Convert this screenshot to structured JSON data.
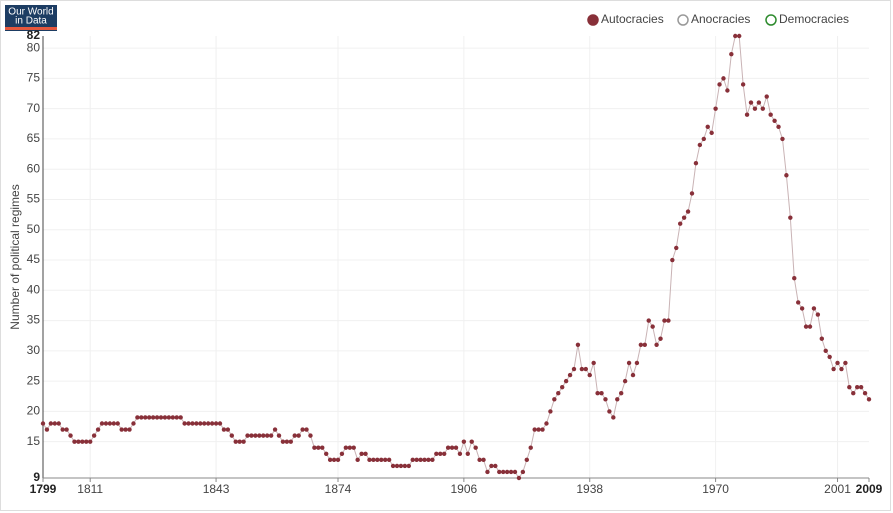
{
  "logo": {
    "line1": "Our World",
    "line2": "in Data"
  },
  "chart_data": {
    "type": "line",
    "ylabel": "Number of political regimes",
    "x": [
      1799,
      1800,
      1801,
      1802,
      1803,
      1804,
      1805,
      1806,
      1807,
      1808,
      1809,
      1810,
      1811,
      1812,
      1813,
      1814,
      1815,
      1816,
      1817,
      1818,
      1819,
      1820,
      1821,
      1822,
      1823,
      1824,
      1825,
      1826,
      1827,
      1828,
      1829,
      1830,
      1831,
      1832,
      1833,
      1834,
      1835,
      1836,
      1837,
      1838,
      1839,
      1840,
      1841,
      1842,
      1843,
      1844,
      1845,
      1846,
      1847,
      1848,
      1849,
      1850,
      1851,
      1852,
      1853,
      1854,
      1855,
      1856,
      1857,
      1858,
      1859,
      1860,
      1861,
      1862,
      1863,
      1864,
      1865,
      1866,
      1867,
      1868,
      1869,
      1870,
      1871,
      1872,
      1873,
      1874,
      1875,
      1876,
      1877,
      1878,
      1879,
      1880,
      1881,
      1882,
      1883,
      1884,
      1885,
      1886,
      1887,
      1888,
      1889,
      1890,
      1891,
      1892,
      1893,
      1894,
      1895,
      1896,
      1897,
      1898,
      1899,
      1900,
      1901,
      1902,
      1903,
      1904,
      1905,
      1906,
      1907,
      1908,
      1909,
      1910,
      1911,
      1912,
      1913,
      1914,
      1915,
      1916,
      1917,
      1918,
      1919,
      1920,
      1921,
      1922,
      1923,
      1924,
      1925,
      1926,
      1927,
      1928,
      1929,
      1930,
      1931,
      1932,
      1933,
      1934,
      1935,
      1936,
      1937,
      1938,
      1939,
      1940,
      1941,
      1942,
      1943,
      1944,
      1945,
      1946,
      1947,
      1948,
      1949,
      1950,
      1951,
      1952,
      1953,
      1954,
      1955,
      1956,
      1957,
      1958,
      1959,
      1960,
      1961,
      1962,
      1963,
      1964,
      1965,
      1966,
      1967,
      1968,
      1969,
      1970,
      1971,
      1972,
      1973,
      1974,
      1975,
      1976,
      1977,
      1978,
      1979,
      1980,
      1981,
      1982,
      1983,
      1984,
      1985,
      1986,
      1987,
      1988,
      1989,
      1990,
      1991,
      1992,
      1993,
      1994,
      1995,
      1996,
      1997,
      1998,
      1999,
      2000,
      2001,
      2002,
      2003,
      2004,
      2005,
      2006,
      2007,
      2008,
      2009
    ],
    "series": [
      {
        "name": "Autocracies",
        "color": "#883039",
        "line_color": "#c9b3b5",
        "values": [
          18,
          17,
          18,
          18,
          18,
          17,
          17,
          16,
          15,
          15,
          15,
          15,
          15,
          16,
          17,
          18,
          18,
          18,
          18,
          18,
          17,
          17,
          17,
          18,
          19,
          19,
          19,
          19,
          19,
          19,
          19,
          19,
          19,
          19,
          19,
          19,
          18,
          18,
          18,
          18,
          18,
          18,
          18,
          18,
          18,
          18,
          17,
          17,
          16,
          15,
          15,
          15,
          16,
          16,
          16,
          16,
          16,
          16,
          16,
          17,
          16,
          15,
          15,
          15,
          16,
          16,
          17,
          17,
          16,
          14,
          14,
          14,
          13,
          12,
          12,
          12,
          13,
          14,
          14,
          14,
          12,
          13,
          13,
          12,
          12,
          12,
          12,
          12,
          12,
          11,
          11,
          11,
          11,
          11,
          12,
          12,
          12,
          12,
          12,
          12,
          13,
          13,
          13,
          14,
          14,
          14,
          13,
          15,
          13,
          15,
          14,
          12,
          12,
          10,
          11,
          11,
          10,
          10,
          10,
          10,
          10,
          9,
          10,
          12,
          14,
          17,
          17,
          17,
          18,
          20,
          22,
          23,
          24,
          25,
          26,
          27,
          31,
          27,
          27,
          26,
          28,
          23,
          23,
          22,
          20,
          19,
          22,
          23,
          25,
          28,
          26,
          28,
          31,
          31,
          35,
          34,
          31,
          32,
          35,
          35,
          45,
          47,
          51,
          52,
          53,
          56,
          61,
          64,
          65,
          67,
          66,
          70,
          74,
          75,
          73,
          79,
          82,
          82,
          74,
          69,
          71,
          70,
          71,
          70,
          72,
          69,
          68,
          67,
          65,
          59,
          52,
          42,
          38,
          37,
          34,
          34,
          37,
          36,
          32,
          30,
          29,
          27,
          28,
          27,
          28,
          24,
          23,
          24,
          24,
          23,
          22
        ]
      }
    ],
    "inactive_series": [
      {
        "name": "Anocracies",
        "color": "#999999"
      },
      {
        "name": "Democracies",
        "color": "#2e8b2e"
      }
    ],
    "xlim": [
      1799,
      2009
    ],
    "xticks": [
      1799,
      1811,
      1843,
      1874,
      1906,
      1938,
      1970,
      2001,
      2009
    ],
    "ylim": [
      9,
      82
    ],
    "yticks": [
      9,
      15,
      20,
      25,
      30,
      35,
      40,
      45,
      50,
      55,
      60,
      65,
      70,
      75,
      80,
      82
    ],
    "grid": true
  }
}
